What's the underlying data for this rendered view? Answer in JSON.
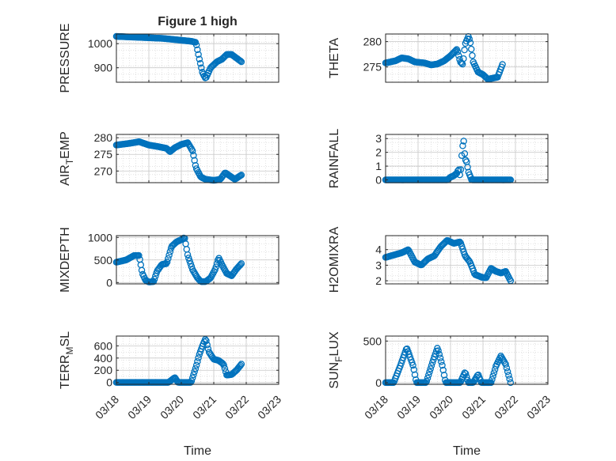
{
  "figure_title": "Figure 1 high",
  "marker_color": "#0072bd",
  "x_tick_labels": [
    "03/18",
    "03/19",
    "03/20",
    "03/21",
    "03/22",
    "03/23"
  ],
  "x_axis_label": "Time",
  "chart_data": [
    {
      "id": "pressure",
      "type": "scatter",
      "title": "Figure 1 high",
      "ylabel": "PRESSURE",
      "ylabel_sub": "",
      "xlim": [
        "2020-03-18",
        "2020-03-23"
      ],
      "ylim": [
        840,
        1040
      ],
      "yticks": [
        900,
        1000
      ],
      "xticks": [
        "03/18",
        "03/19",
        "03/20",
        "03/21",
        "03/22",
        "03/23"
      ],
      "grid": "on",
      "knots": [
        [
          0,
          1030
        ],
        [
          1.4,
          1022
        ],
        [
          2.3,
          1010
        ],
        [
          2.45,
          1005
        ],
        [
          2.55,
          940
        ],
        [
          2.65,
          880
        ],
        [
          2.75,
          855
        ],
        [
          2.9,
          900
        ],
        [
          3.1,
          925
        ],
        [
          3.25,
          935
        ],
        [
          3.4,
          955
        ],
        [
          3.55,
          955
        ],
        [
          3.7,
          940
        ],
        [
          3.85,
          925
        ]
      ]
    },
    {
      "id": "theta",
      "type": "scatter",
      "title": "",
      "ylabel": "THETA",
      "ylabel_sub": "",
      "xlim": [
        "2020-03-18",
        "2020-03-23"
      ],
      "ylim": [
        272,
        281.5
      ],
      "yticks": [
        275,
        280
      ],
      "xticks": [
        "03/18",
        "03/19",
        "03/20",
        "03/21",
        "03/22",
        "03/23"
      ],
      "grid": "on",
      "knots": [
        [
          0,
          275.8
        ],
        [
          0.3,
          276.2
        ],
        [
          0.5,
          276.8
        ],
        [
          0.7,
          276.6
        ],
        [
          0.9,
          276.0
        ],
        [
          1.2,
          275.8
        ],
        [
          1.4,
          275.4
        ],
        [
          1.6,
          275.6
        ],
        [
          1.8,
          276.2
        ],
        [
          2.0,
          277.2
        ],
        [
          2.2,
          278.5
        ],
        [
          2.3,
          276.0
        ],
        [
          2.38,
          275.5
        ],
        [
          2.45,
          279.5
        ],
        [
          2.55,
          281.0
        ],
        [
          2.6,
          280.2
        ],
        [
          2.7,
          276.0
        ],
        [
          2.85,
          274.0
        ],
        [
          3.0,
          273.5
        ],
        [
          3.15,
          272.6
        ],
        [
          3.3,
          272.8
        ],
        [
          3.45,
          273.0
        ],
        [
          3.6,
          275.5
        ]
      ]
    },
    {
      "id": "air_temp",
      "type": "scatter",
      "title": "",
      "ylabel": "AIR",
      "ylabel_sub": "T",
      "ylabel_rest": "EMP",
      "xlim": [
        "2020-03-18",
        "2020-03-23"
      ],
      "ylim": [
        266.5,
        281
      ],
      "yticks": [
        270,
        275,
        280
      ],
      "xticks": [
        "03/18",
        "03/19",
        "03/20",
        "03/21",
        "03/22",
        "03/23"
      ],
      "grid": "on",
      "knots": [
        [
          0,
          277.8
        ],
        [
          0.4,
          278.3
        ],
        [
          0.7,
          278.8
        ],
        [
          1.0,
          277.8
        ],
        [
          1.3,
          277.3
        ],
        [
          1.55,
          276.8
        ],
        [
          1.65,
          275.8
        ],
        [
          1.8,
          277.0
        ],
        [
          2.0,
          278.0
        ],
        [
          2.2,
          278.5
        ],
        [
          2.35,
          276.0
        ],
        [
          2.45,
          271.0
        ],
        [
          2.6,
          268.2
        ],
        [
          2.75,
          267.5
        ],
        [
          3.0,
          267.2
        ],
        [
          3.2,
          267.5
        ],
        [
          3.35,
          269.5
        ],
        [
          3.5,
          268.5
        ],
        [
          3.65,
          267.5
        ],
        [
          3.85,
          268.8
        ]
      ]
    },
    {
      "id": "rainfall",
      "type": "scatter",
      "title": "",
      "ylabel": "RAINFALL",
      "ylabel_sub": "",
      "xlim": [
        "2020-03-18",
        "2020-03-23"
      ],
      "ylim": [
        -0.2,
        3.3
      ],
      "yticks": [
        0,
        1,
        2,
        3
      ],
      "xticks": [
        "03/18",
        "03/19",
        "03/20",
        "03/21",
        "03/22",
        "03/23"
      ],
      "grid": "on",
      "knots": [
        [
          0,
          0
        ],
        [
          1.9,
          0
        ],
        [
          2.0,
          0.2
        ],
        [
          2.1,
          0.3
        ],
        [
          2.2,
          0.5
        ],
        [
          2.25,
          0.8
        ],
        [
          2.3,
          0.2
        ],
        [
          2.35,
          1.9
        ],
        [
          2.4,
          3.0
        ],
        [
          2.45,
          1.5
        ],
        [
          2.5,
          1.3
        ],
        [
          2.55,
          0.6
        ],
        [
          2.6,
          0.3
        ],
        [
          2.65,
          0.0
        ],
        [
          3.85,
          0
        ]
      ]
    },
    {
      "id": "mixdepth",
      "type": "scatter",
      "title": "",
      "ylabel": "MIXDEPTH",
      "ylabel_sub": "",
      "xlim": [
        "2020-03-18",
        "2020-03-23"
      ],
      "ylim": [
        -30,
        1040
      ],
      "yticks": [
        0,
        500,
        1000
      ],
      "xticks": [
        "03/18",
        "03/19",
        "03/20",
        "03/21",
        "03/22",
        "03/23"
      ],
      "grid": "on",
      "knots": [
        [
          0,
          450
        ],
        [
          0.3,
          500
        ],
        [
          0.55,
          600
        ],
        [
          0.7,
          600
        ],
        [
          0.8,
          200
        ],
        [
          0.9,
          50
        ],
        [
          1.0,
          10
        ],
        [
          1.15,
          20
        ],
        [
          1.25,
          250
        ],
        [
          1.4,
          400
        ],
        [
          1.55,
          420
        ],
        [
          1.7,
          800
        ],
        [
          1.85,
          900
        ],
        [
          2.0,
          950
        ],
        [
          2.1,
          1000
        ],
        [
          2.2,
          600
        ],
        [
          2.35,
          280
        ],
        [
          2.5,
          100
        ],
        [
          2.6,
          20
        ],
        [
          2.75,
          20
        ],
        [
          2.9,
          100
        ],
        [
          3.05,
          300
        ],
        [
          3.15,
          550
        ],
        [
          3.25,
          400
        ],
        [
          3.4,
          200
        ],
        [
          3.55,
          150
        ],
        [
          3.7,
          300
        ],
        [
          3.85,
          420
        ]
      ]
    },
    {
      "id": "h2omixra",
      "type": "scatter",
      "title": "",
      "ylabel": "H2OMIXRA",
      "ylabel_sub": "",
      "xlim": [
        "2020-03-18",
        "2020-03-23"
      ],
      "ylim": [
        1.8,
        4.9
      ],
      "yticks": [
        2,
        3,
        4
      ],
      "xticks": [
        "03/18",
        "03/19",
        "03/20",
        "03/21",
        "03/22",
        "03/23"
      ],
      "grid": "on",
      "knots": [
        [
          0,
          3.5
        ],
        [
          0.5,
          3.8
        ],
        [
          0.7,
          4.0
        ],
        [
          0.8,
          3.6
        ],
        [
          0.9,
          3.2
        ],
        [
          1.1,
          3.0
        ],
        [
          1.3,
          3.4
        ],
        [
          1.5,
          3.6
        ],
        [
          1.7,
          4.2
        ],
        [
          1.9,
          4.6
        ],
        [
          2.1,
          4.4
        ],
        [
          2.3,
          4.5
        ],
        [
          2.45,
          3.6
        ],
        [
          2.6,
          3.2
        ],
        [
          2.75,
          2.4
        ],
        [
          3.0,
          2.2
        ],
        [
          3.1,
          2.2
        ],
        [
          3.25,
          2.8
        ],
        [
          3.4,
          2.6
        ],
        [
          3.55,
          2.5
        ],
        [
          3.7,
          2.6
        ],
        [
          3.85,
          2.0
        ]
      ]
    },
    {
      "id": "terr_msl",
      "type": "scatter",
      "title": "",
      "ylabel": "TERR",
      "ylabel_sub": "M",
      "ylabel_rest": "SL",
      "xlim": [
        "2020-03-18",
        "2020-03-23"
      ],
      "ylim": [
        -30,
        760
      ],
      "yticks": [
        0,
        200,
        400,
        600
      ],
      "xticks": [
        "03/18",
        "03/19",
        "03/20",
        "03/21",
        "03/22",
        "03/23"
      ],
      "grid": "on",
      "knots": [
        [
          0,
          0
        ],
        [
          1.6,
          0
        ],
        [
          1.8,
          80
        ],
        [
          1.9,
          0
        ],
        [
          2.3,
          0
        ],
        [
          2.45,
          250
        ],
        [
          2.55,
          450
        ],
        [
          2.65,
          600
        ],
        [
          2.75,
          720
        ],
        [
          2.85,
          500
        ],
        [
          3.0,
          380
        ],
        [
          3.15,
          360
        ],
        [
          3.3,
          300
        ],
        [
          3.4,
          120
        ],
        [
          3.55,
          130
        ],
        [
          3.7,
          200
        ],
        [
          3.85,
          300
        ]
      ]
    },
    {
      "id": "sun_flux",
      "type": "scatter",
      "title": "",
      "ylabel": "SUN",
      "ylabel_sub": "F",
      "ylabel_rest": "LUX",
      "xlim": [
        "2020-03-18",
        "2020-03-23"
      ],
      "ylim": [
        -20,
        560
      ],
      "yticks": [
        0,
        500
      ],
      "xticks": [
        "03/18",
        "03/19",
        "03/20",
        "03/21",
        "03/22",
        "03/23"
      ],
      "grid": "on",
      "knots": [
        [
          0,
          0
        ],
        [
          0.25,
          0
        ],
        [
          0.45,
          200
        ],
        [
          0.65,
          420
        ],
        [
          0.85,
          200
        ],
        [
          0.95,
          0
        ],
        [
          1.25,
          0
        ],
        [
          1.45,
          250
        ],
        [
          1.6,
          420
        ],
        [
          1.75,
          200
        ],
        [
          1.85,
          0
        ],
        [
          2.3,
          0
        ],
        [
          2.45,
          130
        ],
        [
          2.55,
          0
        ],
        [
          2.7,
          0
        ],
        [
          2.85,
          100
        ],
        [
          2.95,
          0
        ],
        [
          3.25,
          0
        ],
        [
          3.4,
          200
        ],
        [
          3.55,
          320
        ],
        [
          3.7,
          220
        ],
        [
          3.85,
          0
        ]
      ]
    }
  ]
}
